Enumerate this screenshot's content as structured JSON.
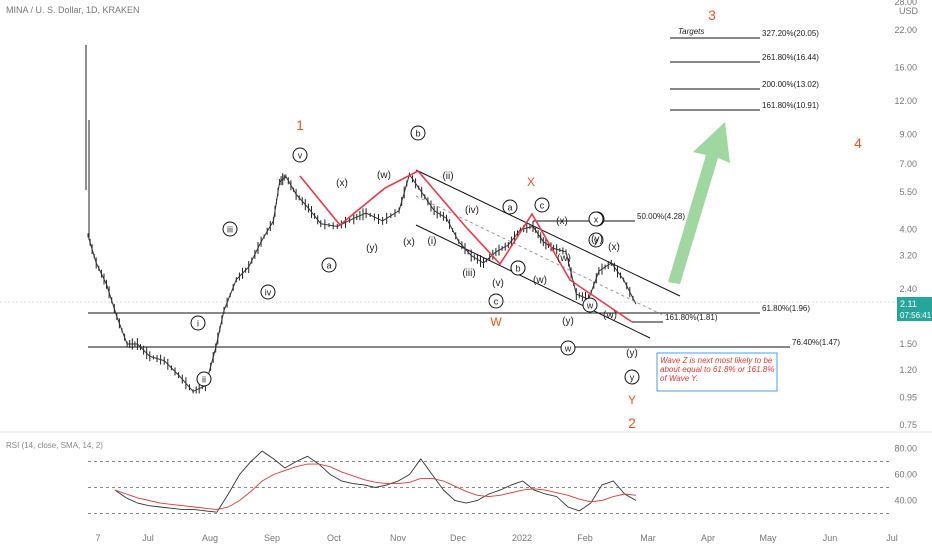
{
  "header": {
    "title": "MINA / U. S. Dollar, 1D, KRAKEN",
    "currency_label": "USD"
  },
  "chart_data": {
    "type": "line",
    "title": "MINA / U. S. Dollar, 1D, KRAKEN",
    "y_scale": "log",
    "ylim": [
      0.75,
      28.0
    ],
    "y_ticks": [
      "28.00",
      "22.00",
      "16.00",
      "12.00",
      "9.00",
      "7.00",
      "5.50",
      "4.00",
      "3.20",
      "2.40",
      "1.50",
      "1.20",
      "0.95",
      "0.75"
    ],
    "x_ticks": [
      "7",
      "Jul",
      "Aug",
      "Sep",
      "Oct",
      "Nov",
      "Dec",
      "2022",
      "Feb",
      "Mar",
      "Apr",
      "May",
      "Jun",
      "Jul"
    ],
    "price": {
      "dates": [
        "2021-06-01",
        "2021-06-05",
        "2021-06-10",
        "2021-06-15",
        "2021-06-20",
        "2021-06-25",
        "2021-07-01",
        "2021-07-08",
        "2021-07-15",
        "2021-07-22",
        "2021-07-28",
        "2021-08-02",
        "2021-08-06",
        "2021-08-12",
        "2021-08-18",
        "2021-08-24",
        "2021-08-30",
        "2021-09-02",
        "2021-09-05",
        "2021-09-10",
        "2021-09-16",
        "2021-09-22",
        "2021-09-30",
        "2021-10-08",
        "2021-10-14",
        "2021-10-22",
        "2021-10-30",
        "2021-11-04",
        "2021-11-10",
        "2021-11-16",
        "2021-11-22",
        "2021-11-28",
        "2021-12-04",
        "2021-12-10",
        "2021-12-16",
        "2021-12-22",
        "2021-12-28",
        "2022-01-03",
        "2022-01-08",
        "2022-01-13",
        "2022-01-19",
        "2022-01-24",
        "2022-01-30",
        "2022-02-04",
        "2022-02-10",
        "2022-02-16",
        "2022-02-22"
      ],
      "values": [
        3.8,
        3.0,
        2.5,
        1.9,
        1.5,
        1.5,
        1.35,
        1.3,
        1.15,
        1.0,
        1.05,
        1.45,
        2.0,
        2.6,
        2.9,
        3.6,
        4.3,
        6.0,
        6.3,
        5.4,
        4.8,
        4.2,
        4.1,
        4.4,
        4.6,
        4.3,
        4.7,
        6.4,
        5.5,
        4.7,
        4.4,
        3.6,
        3.2,
        3.0,
        3.3,
        3.5,
        4.0,
        4.1,
        3.6,
        3.4,
        3.3,
        2.3,
        2.2,
        2.8,
        3.0,
        2.6,
        2.11
      ]
    },
    "last_price": {
      "value": "2.11",
      "time": "07:56:41"
    },
    "fib_levels": [
      {
        "label": "327.20%(20.05)",
        "value": 20.05
      },
      {
        "label": "261.80%(16.44)",
        "value": 16.44
      },
      {
        "label": "200.00%(13.02)",
        "value": 13.02
      },
      {
        "label": "161.80%(10.91)",
        "value": 10.91
      },
      {
        "label": "50.00%(4.28)",
        "value": 4.28
      },
      {
        "label": "61.80%(1.96)",
        "value": 1.96
      },
      {
        "label": "161.80%(1.81)",
        "value": 1.81
      },
      {
        "label": "76.40%(1.47)",
        "value": 1.47
      }
    ],
    "targets_label": "Targets",
    "annotation": "Wave Z is next most likely to be about equal to 61.8% or 161.8% of Wave Y.",
    "wave_labels_red": [
      "1",
      "2",
      "3",
      "4",
      "X",
      "W",
      "Y"
    ],
    "wave_labels_circled": [
      "v",
      "b",
      "iii",
      "i",
      "ii",
      "a",
      "c",
      "b",
      "w",
      "x",
      "w",
      "y",
      "iv",
      "x",
      "y",
      "c",
      "a",
      "b"
    ],
    "wave_labels_paren": [
      "x",
      "w",
      "ii",
      "y",
      "x",
      "i",
      "iv",
      "iii",
      "v",
      "w",
      "x",
      "w",
      "y",
      "y",
      "x",
      "w",
      "y"
    ],
    "rsi": {
      "title": "RSI (14, close, SMA, 14, 2)",
      "ylim": [
        25,
        85
      ],
      "y_ticks": [
        "80.00",
        "60.00",
        "40.00"
      ],
      "bands": [
        70,
        50,
        30
      ],
      "values": [
        48,
        42,
        38,
        36,
        35,
        34,
        33,
        33,
        32,
        31,
        45,
        60,
        70,
        78,
        72,
        65,
        70,
        74,
        68,
        60,
        55,
        53,
        52,
        50,
        52,
        55,
        60,
        72,
        60,
        48,
        40,
        38,
        40,
        45,
        48,
        52,
        55,
        48,
        45,
        43,
        35,
        32,
        38,
        52,
        55,
        45,
        40
      ],
      "sma": [
        48,
        45,
        42,
        40,
        38,
        37,
        36,
        35,
        34,
        33,
        35,
        40,
        47,
        55,
        60,
        63,
        66,
        68,
        68,
        66,
        62,
        59,
        56,
        54,
        53,
        53,
        54,
        57,
        57,
        55,
        51,
        47,
        44,
        43,
        44,
        46,
        48,
        49,
        48,
        46,
        44,
        41,
        39,
        40,
        43,
        45,
        44
      ]
    },
    "colors": {
      "zigzag": "#f23645",
      "labels_red": "#f4511e",
      "arrow": "#8fd08f",
      "rsi_line": "#333333",
      "rsi_sma": "#e53935",
      "last_price_bg": "#26a69a"
    }
  }
}
